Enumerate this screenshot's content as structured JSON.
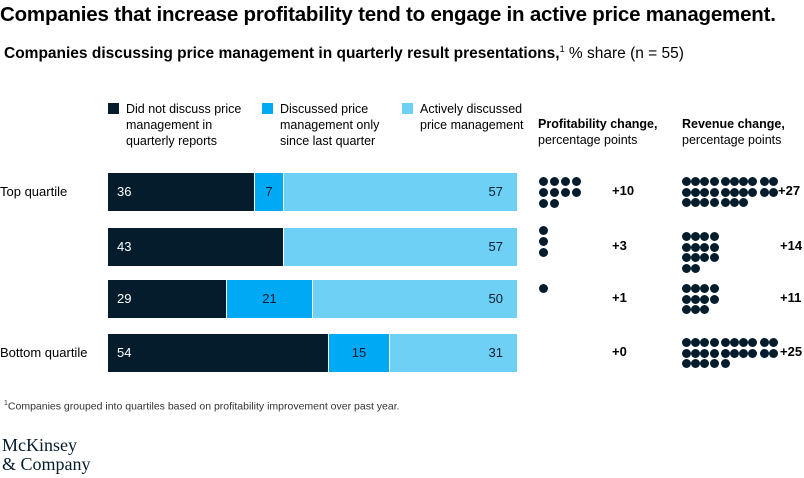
{
  "header": {
    "title": "Companies that increase profitability tend to engage in active price management.",
    "subtitle_bold": "Companies discussing price management in quarterly result presentations,",
    "subtitle_sup": "1",
    "subtitle_rest": " % share (n = 55)"
  },
  "legend": [
    {
      "label": "Did not discuss price management in quarterly reports",
      "color": "#051c2c"
    },
    {
      "label": "Discussed price management only since last quarter",
      "color": "#00a9f4"
    },
    {
      "label": "Actively discussed price management",
      "color": "#6dd0f4"
    }
  ],
  "columns": {
    "profit_title": "Profitability change,",
    "profit_sub": "percentage points",
    "revenue_title": "Revenue change,",
    "revenue_sub": "percentage points"
  },
  "chart_data": {
    "type": "bar",
    "orientation": "horizontal-stacked-100",
    "categories": [
      "Top quartile",
      "",
      "",
      "Bottom quartile"
    ],
    "series": [
      {
        "name": "Did not discuss price management in quarterly reports",
        "values": [
          36,
          43,
          29,
          54
        ]
      },
      {
        "name": "Discussed price management only since last quarter",
        "values": [
          7,
          0,
          21,
          15
        ]
      },
      {
        "name": "Actively discussed price management",
        "values": [
          57,
          57,
          50,
          31
        ]
      }
    ],
    "profitability_change": {
      "values": [
        10,
        3,
        1,
        0
      ],
      "labels": [
        "+10",
        "+3",
        "+1",
        "+0"
      ]
    },
    "revenue_change": {
      "values": [
        27,
        14,
        11,
        25
      ],
      "labels": [
        "+27",
        "+14",
        "+11",
        "+25"
      ]
    },
    "unit": "%",
    "legend_position": "top"
  },
  "footnote": {
    "sup": "1",
    "text": "Companies grouped into quartiles based on profitability improvement over past year."
  },
  "brand": {
    "line1": "McKinsey",
    "line2": "& Company"
  }
}
